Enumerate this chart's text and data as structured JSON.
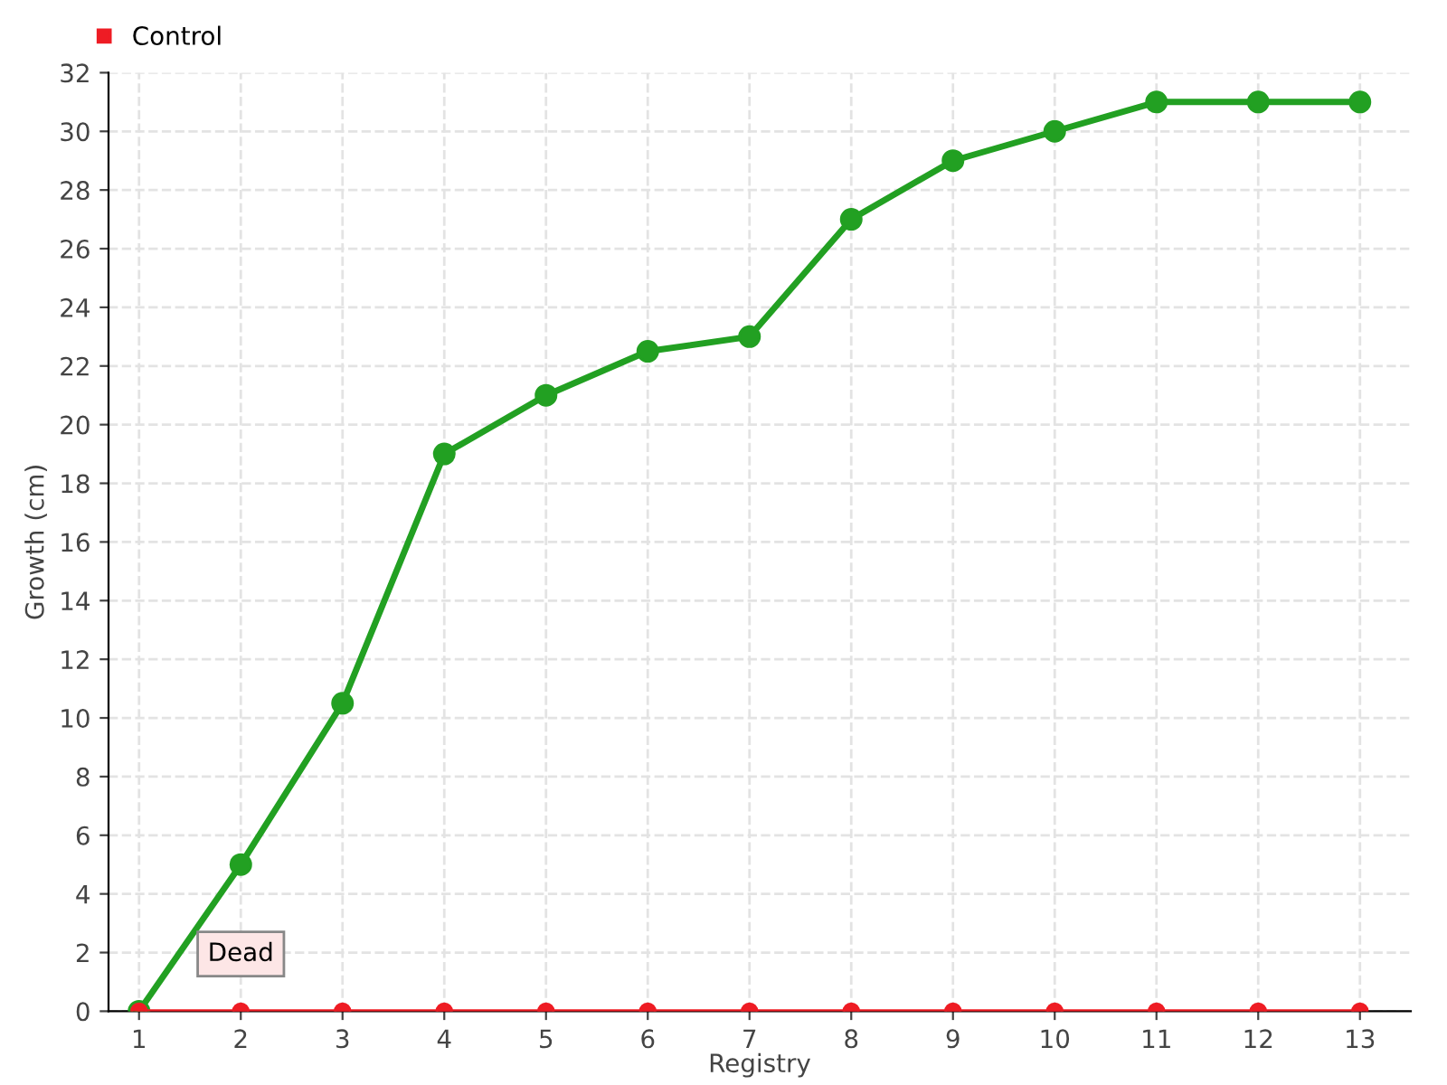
{
  "chart_data": {
    "type": "line",
    "xlabel": "Registry",
    "ylabel": "Growth (cm)",
    "categories": [
      "1",
      "2",
      "3",
      "4",
      "5",
      "6",
      "7",
      "8",
      "9",
      "10",
      "11",
      "12",
      "13"
    ],
    "series": [
      {
        "color": "#22a022",
        "values": [
          0,
          5,
          10.5,
          19,
          21,
          22.5,
          23,
          27,
          29,
          30,
          31,
          31,
          31
        ]
      },
      {
        "name": "Control",
        "color": "#ee1c24",
        "values": [
          0,
          0,
          0,
          0,
          0,
          0,
          0,
          0,
          0,
          0,
          0,
          0,
          0
        ]
      }
    ],
    "ylim": [
      0,
      32
    ],
    "yticks": [
      0,
      2,
      4,
      6,
      8,
      10,
      12,
      14,
      16,
      18,
      20,
      22,
      24,
      26,
      28,
      30,
      32
    ],
    "grid": true,
    "legend": "top left",
    "marker": "circle",
    "line_style": "solid",
    "annotations": [
      {
        "text": "Dead",
        "x": "2",
        "y": 0
      }
    ]
  }
}
